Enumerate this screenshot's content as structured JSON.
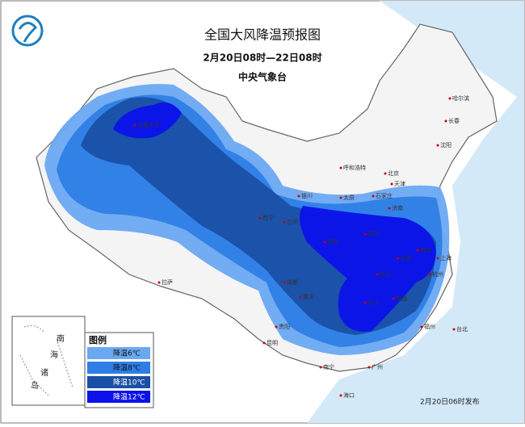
{
  "header": {
    "title": "全国大风降温预报图",
    "period": "2月20日08时—22日08时",
    "issuer": "中央气象台"
  },
  "legend": {
    "title": "图例",
    "items": [
      {
        "label": "降温6℃",
        "color": "#6aa8f2"
      },
      {
        "label": "降温8℃",
        "color": "#2e7ee6"
      },
      {
        "label": "降温10℃",
        "color": "#1a4fa6"
      },
      {
        "label": "降温12℃",
        "color": "#0b12ea"
      }
    ]
  },
  "cities": [
    "哈尔滨",
    "长春",
    "沈阳",
    "呼和浩特",
    "北京",
    "天津",
    "石家庄",
    "太原",
    "济南",
    "银川",
    "西宁",
    "兰州",
    "西安",
    "郑州",
    "合肥",
    "南京",
    "上海",
    "杭州",
    "武汉",
    "长沙",
    "南昌",
    "福州",
    "台北",
    "成都",
    "重庆",
    "贵阳",
    "昆明",
    "南宁",
    "广州",
    "海口",
    "拉萨",
    "乌鲁木齐"
  ],
  "inset": [
    "南",
    "海",
    "诸",
    "岛"
  ],
  "footer": "2月20日06时发布"
}
